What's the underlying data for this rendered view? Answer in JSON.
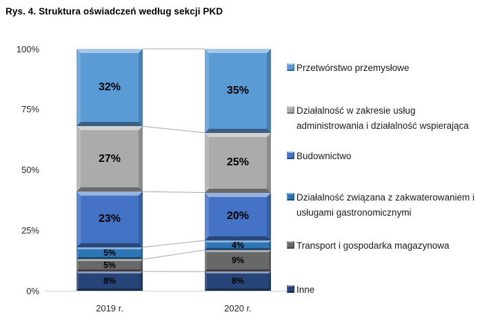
{
  "title": "Rys. 4. Struktura oświadczeń według sekcji PKD",
  "chart_data": {
    "type": "bar",
    "subtype": "stacked-100-percent",
    "stack_order": "first-series-on-top",
    "title": "Rys. 4. Struktura oświadczeń według sekcji PKD",
    "categories": [
      "2019 r.",
      "2020 r."
    ],
    "series": [
      {
        "name": "Przetwórstwo przemysłowe",
        "legend_label": "Przetwórstwo przemysłowe",
        "values": [
          32,
          35
        ],
        "labels": [
          "32%",
          "35%"
        ],
        "color": "#5B9BD5"
      },
      {
        "name": "Działalność w zakresie usług administrowania i działalność wspierająca",
        "legend_label": " Działalność w zakresie usług\nadministrowania i działalność wspierająca",
        "values": [
          27,
          25
        ],
        "labels": [
          "27%",
          "25%"
        ],
        "color": "#ACABAB"
      },
      {
        "name": "Budownictwo",
        "legend_label": "Budownictwo",
        "values": [
          23,
          20
        ],
        "labels": [
          "23%",
          "20%"
        ],
        "color": "#4472C4"
      },
      {
        "name": "Działalność związana z zakwaterowaniem i usługami gastronomicznymi",
        "legend_label": "Działalność związana z zakwaterowaniem i\nusługami gastronomicznymi",
        "values": [
          5,
          4
        ],
        "labels": [
          "5%",
          "4%"
        ],
        "color": "#2E75B6"
      },
      {
        "name": "Transport i gospodarka magazynowa",
        "legend_label": "Transport i gospodarka magazynowa",
        "values": [
          5,
          9
        ],
        "labels": [
          "5%",
          "9%"
        ],
        "color": "#686868"
      },
      {
        "name": "Inne",
        "legend_label": "Inne",
        "values": [
          8,
          8
        ],
        "labels": [
          "8%",
          "8%"
        ],
        "color": "#264478"
      }
    ],
    "y_axis": {
      "tick_labels": [
        "100%",
        "75%",
        "50%",
        "25%",
        "0%"
      ],
      "tick_values": [
        100,
        75,
        50,
        25,
        0
      ]
    },
    "ylim": [
      0,
      100
    ],
    "grid": false,
    "data_labels": true,
    "legend_position": "right",
    "connector_lines": true,
    "connector_color": "#A6A6A6",
    "axis_line_color": "#C9CED6"
  }
}
